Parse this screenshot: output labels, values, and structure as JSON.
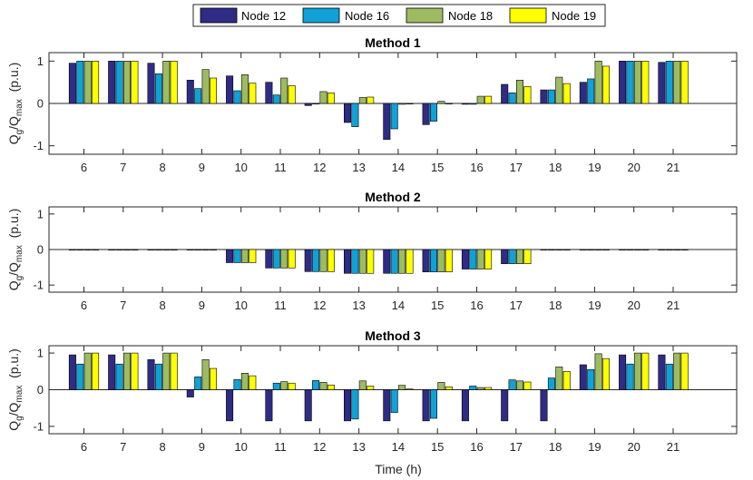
{
  "legend": {
    "items": [
      {
        "label": "Node 12",
        "color": "#2e2c84"
      },
      {
        "label": "Node 16",
        "color": "#10a1d6"
      },
      {
        "label": "Node 18",
        "color": "#9dbb61"
      },
      {
        "label": "Node 19",
        "color": "#ffff00"
      }
    ]
  },
  "xlabel": "Time (h)",
  "chart_data": [
    {
      "type": "bar",
      "title": "Method 1",
      "categories": [
        "6",
        "7",
        "8",
        "9",
        "10",
        "11",
        "12",
        "13",
        "14",
        "15",
        "16",
        "17",
        "18",
        "19",
        "20",
        "21"
      ],
      "ylim": [
        -1.2,
        1.2
      ],
      "yticks": [
        "-1",
        "0",
        "1"
      ],
      "ylabel_main": "Q",
      "ylabel_sub1": "g",
      "ylabel_sep": "/Q",
      "ylabel_sub2": "max",
      "ylabel_unit": "(p.u.)",
      "series": [
        {
          "name": "Node 12",
          "values": [
            0.95,
            1.0,
            0.95,
            0.55,
            0.65,
            0.5,
            -0.05,
            -0.45,
            -0.85,
            -0.5,
            -0.02,
            0.45,
            0.32,
            0.5,
            1.0,
            0.97
          ]
        },
        {
          "name": "Node 16",
          "values": [
            1.0,
            1.0,
            0.7,
            0.35,
            0.3,
            0.2,
            0.0,
            -0.55,
            -0.6,
            -0.42,
            -0.02,
            0.25,
            0.32,
            0.58,
            1.0,
            1.0
          ]
        },
        {
          "name": "Node 18",
          "values": [
            1.0,
            1.0,
            1.0,
            0.8,
            0.68,
            0.6,
            0.28,
            0.14,
            -0.02,
            0.05,
            0.17,
            0.55,
            0.62,
            1.0,
            1.0,
            1.0
          ]
        },
        {
          "name": "Node 19",
          "values": [
            1.0,
            1.0,
            1.0,
            0.6,
            0.48,
            0.42,
            0.25,
            0.15,
            0.0,
            0.0,
            0.17,
            0.4,
            0.47,
            0.88,
            1.0,
            1.0
          ]
        }
      ]
    },
    {
      "type": "bar",
      "title": "Method 2",
      "categories": [
        "6",
        "7",
        "8",
        "9",
        "10",
        "11",
        "12",
        "13",
        "14",
        "15",
        "16",
        "17",
        "18",
        "19",
        "20",
        "21"
      ],
      "ylim": [
        -1.2,
        1.2
      ],
      "yticks": [
        "-1",
        "0",
        "1"
      ],
      "ylabel_main": "Q",
      "ylabel_sub1": "g",
      "ylabel_sep": "/Q",
      "ylabel_sub2": "max",
      "ylabel_unit": "(p.u.)",
      "series": [
        {
          "name": "Node 12",
          "values": [
            0,
            0,
            0,
            0,
            -0.37,
            -0.52,
            -0.62,
            -0.67,
            -0.67,
            -0.63,
            -0.55,
            -0.4,
            0,
            0,
            0,
            0
          ]
        },
        {
          "name": "Node 16",
          "values": [
            0,
            0,
            0,
            0,
            -0.37,
            -0.52,
            -0.62,
            -0.67,
            -0.67,
            -0.63,
            -0.55,
            -0.4,
            0,
            0,
            0,
            0
          ]
        },
        {
          "name": "Node 18",
          "values": [
            0,
            0,
            0,
            0,
            -0.37,
            -0.52,
            -0.62,
            -0.67,
            -0.67,
            -0.63,
            -0.55,
            -0.4,
            0,
            0,
            0,
            0
          ]
        },
        {
          "name": "Node 19",
          "values": [
            0,
            0,
            0,
            0,
            -0.37,
            -0.52,
            -0.62,
            -0.67,
            -0.67,
            -0.63,
            -0.55,
            -0.4,
            0,
            0,
            0,
            0
          ]
        }
      ]
    },
    {
      "type": "bar",
      "title": "Method 3",
      "categories": [
        "6",
        "7",
        "8",
        "9",
        "10",
        "11",
        "12",
        "13",
        "14",
        "15",
        "16",
        "17",
        "18",
        "19",
        "20",
        "21"
      ],
      "ylim": [
        -1.2,
        1.2
      ],
      "yticks": [
        "-1",
        "0",
        "1"
      ],
      "ylabel_main": "Q",
      "ylabel_sub1": "g",
      "ylabel_sep": "/Q",
      "ylabel_sub2": "max",
      "ylabel_unit": "(p.u.)",
      "series": [
        {
          "name": "Node 12",
          "values": [
            0.95,
            0.95,
            0.82,
            -0.2,
            -0.85,
            -0.85,
            -0.85,
            -0.85,
            -0.85,
            -0.85,
            -0.85,
            -0.85,
            -0.85,
            0.68,
            0.95,
            0.95
          ]
        },
        {
          "name": "Node 16",
          "values": [
            0.7,
            0.7,
            0.7,
            0.35,
            0.28,
            0.18,
            0.25,
            -0.8,
            -0.62,
            -0.78,
            0.1,
            0.27,
            0.32,
            0.55,
            0.7,
            0.7
          ]
        },
        {
          "name": "Node 18",
          "values": [
            1.0,
            1.0,
            1.0,
            0.82,
            0.45,
            0.22,
            0.2,
            0.24,
            0.12,
            0.2,
            0.06,
            0.24,
            0.62,
            0.98,
            1.0,
            1.0
          ]
        },
        {
          "name": "Node 19",
          "values": [
            1.0,
            1.0,
            1.0,
            0.58,
            0.38,
            0.18,
            0.13,
            0.1,
            0.02,
            0.08,
            0.06,
            0.21,
            0.5,
            0.85,
            1.0,
            1.0
          ]
        }
      ]
    }
  ]
}
